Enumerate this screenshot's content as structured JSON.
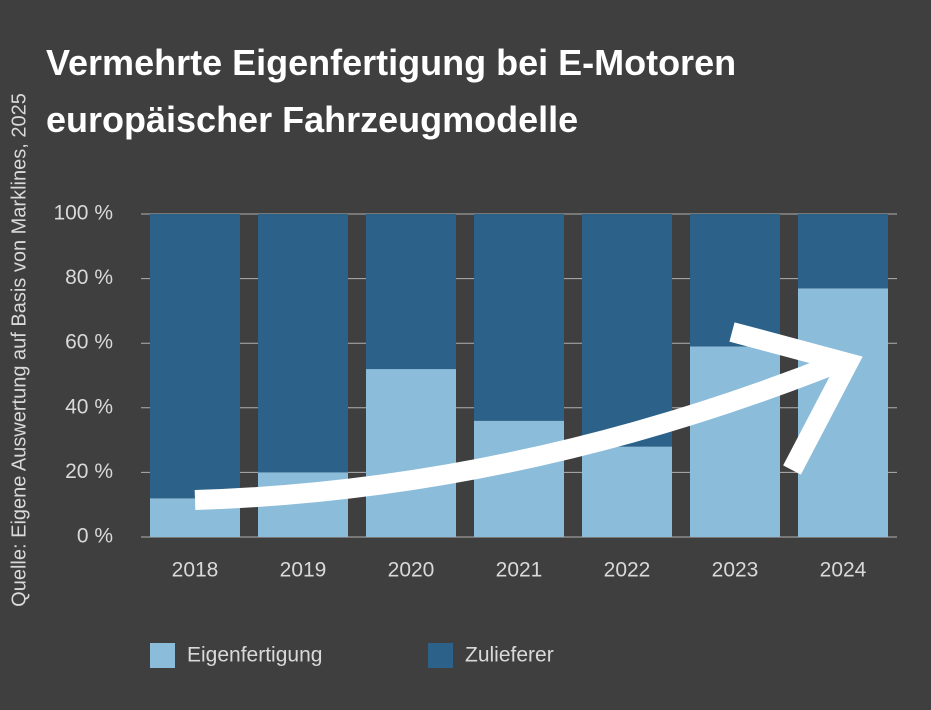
{
  "chart_data": {
    "type": "stacked_bar",
    "title": [
      "Vermehrte Eigenfertigung bei E-Motoren",
      "europäischer Fahrzeugmodelle"
    ],
    "source": "Quelle: Eigene Auswertung auf Basis von Marklines, 2025",
    "categories": [
      "2018",
      "2019",
      "2020",
      "2021",
      "2022",
      "2023",
      "2024"
    ],
    "series": [
      {
        "name": "Eigenfertigung",
        "color": "#8bbcd9",
        "values": [
          12,
          20,
          52,
          36,
          28,
          59,
          77
        ]
      },
      {
        "name": "Zulieferer",
        "color": "#2c6289",
        "values": [
          88,
          80,
          48,
          64,
          72,
          41,
          23
        ]
      }
    ],
    "ylim": [
      0,
      100
    ],
    "yticks": [
      {
        "value": 0,
        "label": "0 %"
      },
      {
        "value": 20,
        "label": "20 %"
      },
      {
        "value": 40,
        "label": "40 %"
      },
      {
        "value": 60,
        "label": "60 %"
      },
      {
        "value": 80,
        "label": "80 %"
      },
      {
        "value": 100,
        "label": "100 %"
      }
    ],
    "grid": true
  }
}
